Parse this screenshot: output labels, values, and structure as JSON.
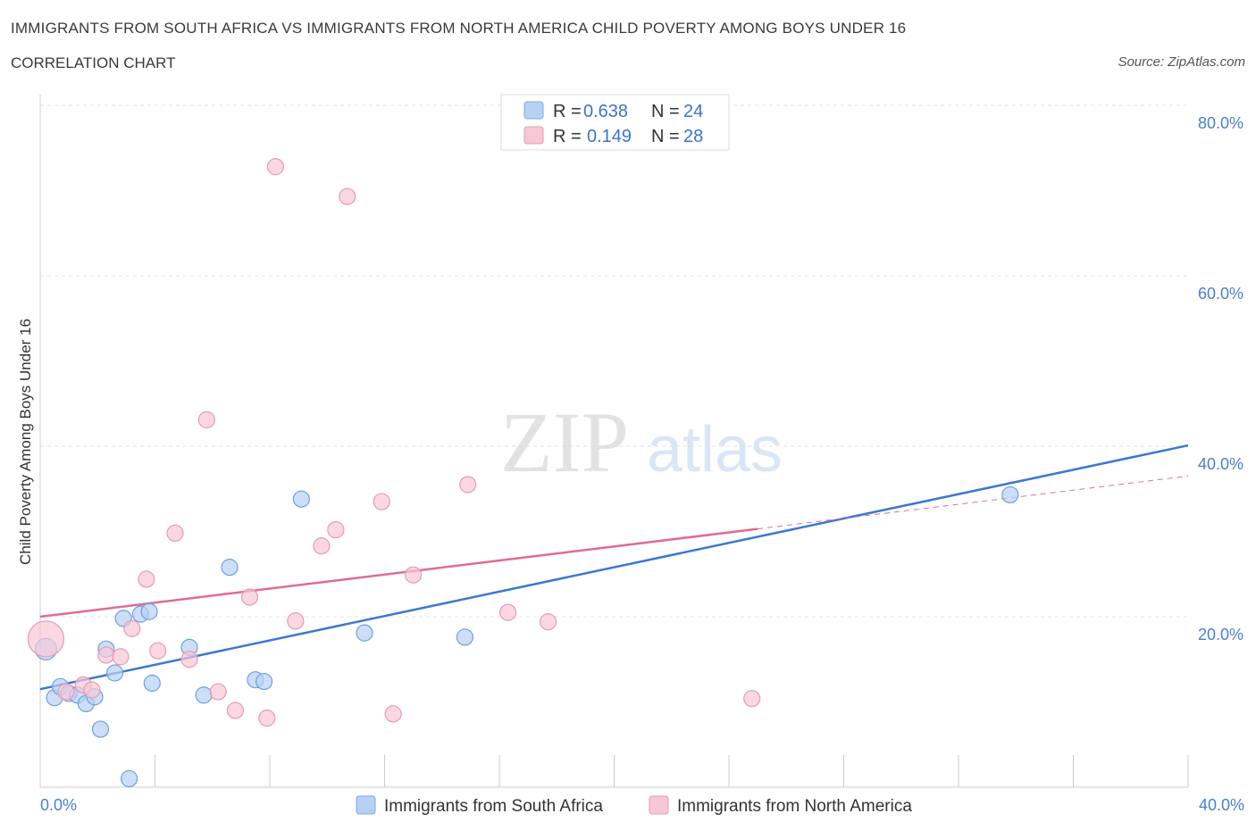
{
  "title": "IMMIGRANTS FROM SOUTH AFRICA VS IMMIGRANTS FROM NORTH AMERICA CHILD POVERTY AMONG BOYS UNDER 16",
  "subtitle": "CORRELATION CHART",
  "source": "Source: ZipAtlas.com",
  "watermark": {
    "zip": "ZIP",
    "atlas": "atlas"
  },
  "colors": {
    "blue": "#3b78d0",
    "blue_fill": "#b7d1f4",
    "pink": "#e06b94",
    "pink_fill": "#f7c7d6",
    "axis_text": "#4a7fd0"
  },
  "legend": {
    "r_label": "R =",
    "n_label": "N =",
    "items": [
      {
        "r": "0.638",
        "n": "24"
      },
      {
        "r": "0.149",
        "n": "28"
      }
    ]
  },
  "chart_data": {
    "type": "scatter",
    "xlabel": "",
    "ylabel": "Child Poverty Among Boys Under 16",
    "xlim": [
      0,
      40
    ],
    "ylim": [
      0,
      80
    ],
    "x_tick_labels": [
      {
        "value": 0,
        "label": "0.0%"
      },
      {
        "value": 40,
        "label": "40.0%"
      }
    ],
    "y_tick_labels": [
      {
        "value": 20,
        "label": "20.0%"
      },
      {
        "value": 40,
        "label": "40.0%"
      },
      {
        "value": 60,
        "label": "60.0%"
      },
      {
        "value": 80,
        "label": "80.0%"
      }
    ],
    "series": [
      {
        "name": "Immigrants from South Africa",
        "color": "#3b78d0",
        "points": [
          [
            0.2,
            16.2
          ],
          [
            0.5,
            10.5
          ],
          [
            0.7,
            11.8
          ],
          [
            1.0,
            11.0
          ],
          [
            1.3,
            10.8
          ],
          [
            1.6,
            9.8
          ],
          [
            1.9,
            10.6
          ],
          [
            2.1,
            6.8
          ],
          [
            2.3,
            16.2
          ],
          [
            2.6,
            13.4
          ],
          [
            2.9,
            19.8
          ],
          [
            3.1,
            1.0
          ],
          [
            3.5,
            20.3
          ],
          [
            3.8,
            20.6
          ],
          [
            3.9,
            12.2
          ],
          [
            5.2,
            16.4
          ],
          [
            5.7,
            10.8
          ],
          [
            6.6,
            25.8
          ],
          [
            7.5,
            12.6
          ],
          [
            7.8,
            12.4
          ],
          [
            9.1,
            33.8
          ],
          [
            11.3,
            18.1
          ],
          [
            14.8,
            17.6
          ],
          [
            33.8,
            34.3
          ]
        ],
        "trend": {
          "x": [
            0,
            40
          ],
          "y": [
            11.5,
            40.1
          ]
        }
      },
      {
        "name": "Immigrants from North America",
        "color": "#e06b94",
        "points": [
          [
            0.2,
            17.4
          ],
          [
            0.9,
            11.2
          ],
          [
            1.5,
            12.0
          ],
          [
            1.8,
            11.4
          ],
          [
            2.3,
            15.5
          ],
          [
            2.8,
            15.3
          ],
          [
            3.2,
            18.6
          ],
          [
            3.7,
            24.4
          ],
          [
            4.1,
            16.0
          ],
          [
            4.7,
            29.8
          ],
          [
            5.2,
            15.0
          ],
          [
            5.8,
            43.1
          ],
          [
            6.2,
            11.2
          ],
          [
            6.8,
            9.0
          ],
          [
            7.3,
            22.3
          ],
          [
            7.9,
            8.1
          ],
          [
            8.2,
            72.8
          ],
          [
            8.9,
            19.5
          ],
          [
            9.8,
            28.3
          ],
          [
            10.3,
            30.2
          ],
          [
            10.7,
            69.3
          ],
          [
            11.9,
            33.5
          ],
          [
            12.3,
            8.6
          ],
          [
            13.0,
            24.9
          ],
          [
            14.9,
            35.5
          ],
          [
            16.3,
            20.5
          ],
          [
            17.7,
            19.4
          ],
          [
            24.8,
            10.4
          ]
        ],
        "trend": {
          "x": [
            0,
            25
          ],
          "y": [
            20.0,
            30.3
          ]
        },
        "trend_dashed": {
          "x": [
            25,
            40
          ],
          "y": [
            30.3,
            36.5
          ]
        }
      }
    ]
  }
}
